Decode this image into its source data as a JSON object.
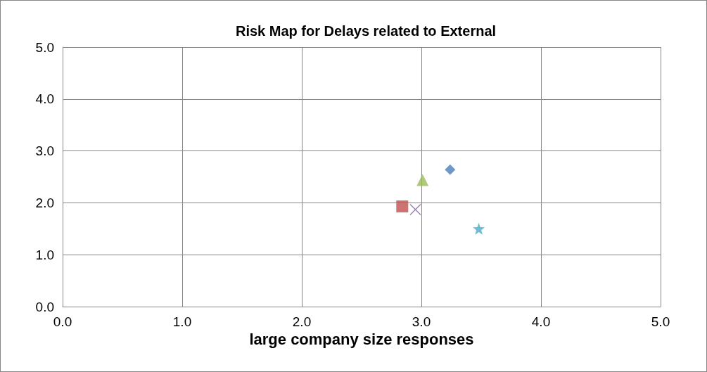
{
  "chart_data": {
    "type": "scatter",
    "title": "Risk Map for Delays related to External",
    "xlabel": "large company size responses",
    "series": [
      {
        "color": "#4a7ebb",
        "marker": "diamond",
        "x": [
          3.24
        ],
        "values": [
          2.64
        ]
      },
      {
        "color": "#c0504d",
        "marker": "square",
        "x": [
          2.84
        ],
        "values": [
          1.93
        ]
      },
      {
        "color": "#9bbb59",
        "marker": "triangle",
        "x": [
          3.01
        ],
        "values": [
          2.44
        ]
      },
      {
        "color": "#8064a2",
        "marker": "cross",
        "x": [
          2.95
        ],
        "values": [
          1.87
        ]
      },
      {
        "color": "#4bacc6",
        "marker": "star",
        "x": [
          3.48
        ],
        "values": [
          1.5
        ]
      }
    ],
    "xlim": [
      0,
      5
    ],
    "ylim": [
      0,
      5
    ],
    "xticks": [
      {
        "value": 0,
        "label": "0.0"
      },
      {
        "value": 1,
        "label": "1.0"
      },
      {
        "value": 2,
        "label": "2.0"
      },
      {
        "value": 3,
        "label": "3.0"
      },
      {
        "value": 4,
        "label": "4.0"
      },
      {
        "value": 5,
        "label": "5.0"
      }
    ],
    "yticks": [
      {
        "value": 0,
        "label": "0.0"
      },
      {
        "value": 1,
        "label": "1.0"
      },
      {
        "value": 2,
        "label": "2.0"
      },
      {
        "value": 3,
        "label": "3.0"
      },
      {
        "value": 4,
        "label": "4.0"
      },
      {
        "value": 5,
        "label": "5.0"
      }
    ],
    "grid": true
  }
}
